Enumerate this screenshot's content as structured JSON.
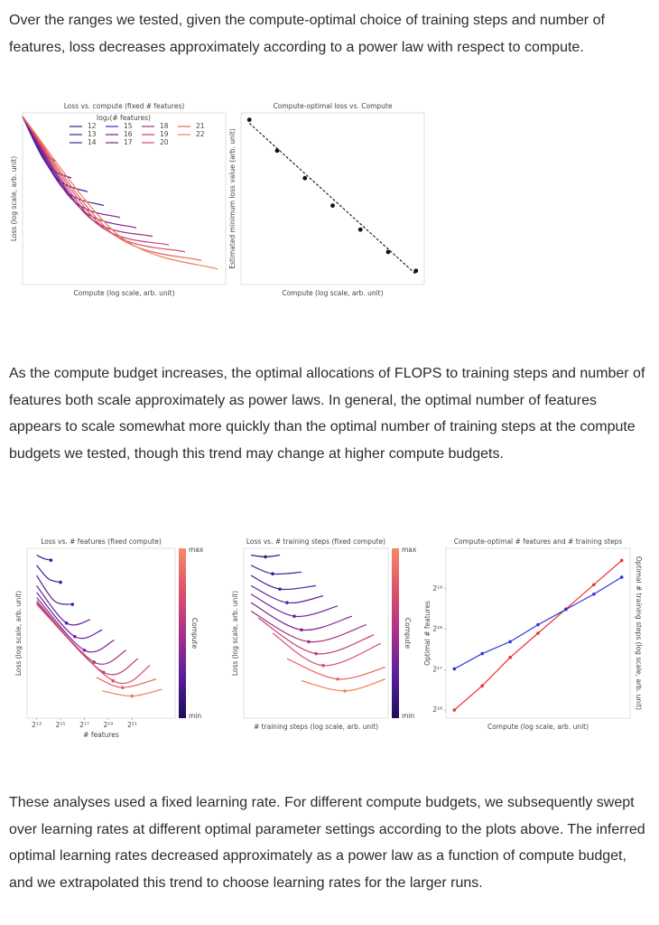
{
  "paragraphs": [
    "Over the ranges we tested, given the compute-optimal choice of training steps and number of features, loss decreases approximately according to a power law with respect to compute.",
    "As the compute budget increases, the optimal allocations of FLOPS to training steps and number of features both scale approximately as power laws. In general, the optimal number of features appears to scale somewhat more quickly than the optimal number of training steps at the compute budgets we tested, though this trend may change at higher compute budgets.",
    "These analyses used a fixed learning rate. For different compute budgets, we subsequently swept over learning rates at different optimal parameter settings according to the plots above. The inferred optimal learning rates decreased approximately as a power law as a function of compute budget, and we extrapolated this trend to choose learning rates for the larger runs."
  ],
  "chart_data": [
    {
      "type": "line",
      "title": "Loss vs. compute (fixed # features)",
      "xlabel": "Compute (log scale, arb. unit)",
      "ylabel": "Loss (log scale, arb. unit)",
      "xlim": [
        0,
        10
      ],
      "ylim": [
        0,
        10
      ],
      "smooth": true,
      "legend": {
        "title": "log₂(# features)",
        "corner": "upper right"
      },
      "series": [
        {
          "name": "12",
          "color": "#2d1e8f",
          "x": [
            0,
            0.8,
            1.6
          ],
          "values": [
            9.8,
            7.9,
            7.2
          ]
        },
        {
          "name": "13",
          "color": "#3b1f9a",
          "x": [
            0,
            1.2,
            2.4
          ],
          "values": [
            9.8,
            7.0,
            6.2
          ]
        },
        {
          "name": "14",
          "color": "#4a1fa0",
          "x": [
            0,
            1.6,
            3.2
          ],
          "values": [
            9.8,
            6.3,
            5.4
          ]
        },
        {
          "name": "15",
          "color": "#5c1f9f",
          "x": [
            0,
            2.0,
            4.0
          ],
          "values": [
            9.8,
            5.6,
            4.6
          ]
        },
        {
          "name": "16",
          "color": "#6e2098",
          "x": [
            0,
            2.4,
            4.8
          ],
          "values": [
            9.8,
            5.0,
            3.9
          ]
        },
        {
          "name": "17",
          "color": "#80218f",
          "x": [
            0,
            2.8,
            5.6
          ],
          "values": [
            9.8,
            4.5,
            3.3
          ]
        },
        {
          "name": "18",
          "color": "#a0307f",
          "x": [
            0,
            3.2,
            6.4
          ],
          "values": [
            9.8,
            4.0,
            2.8
          ]
        },
        {
          "name": "19",
          "color": "#c03e70",
          "x": [
            0,
            3.6,
            7.2
          ],
          "values": [
            9.8,
            3.6,
            2.3
          ]
        },
        {
          "name": "20",
          "color": "#d84f67",
          "x": [
            0,
            4.0,
            8.0
          ],
          "values": [
            9.8,
            3.3,
            1.9
          ]
        },
        {
          "name": "21",
          "color": "#e8655e",
          "x": [
            0,
            4.4,
            8.8
          ],
          "values": [
            9.8,
            3.0,
            1.4
          ]
        },
        {
          "name": "22",
          "color": "#f37e58",
          "x": [
            0,
            4.8,
            9.6
          ],
          "values": [
            9.8,
            2.8,
            0.9
          ]
        }
      ]
    },
    {
      "type": "scatter",
      "title": "Compute-optimal loss vs. Compute",
      "xlabel": "Compute (log scale, arb. unit)",
      "ylabel": "Estimated minimum loss value (arb. unit)",
      "xlim": [
        -0.3,
        6.3
      ],
      "ylim": [
        0,
        10
      ],
      "series": [
        {
          "color": "#111111",
          "x": [
            0,
            1,
            2,
            3,
            4,
            5,
            6
          ],
          "values": [
            9.6,
            7.8,
            6.2,
            4.6,
            3.2,
            1.9,
            0.8
          ]
        }
      ],
      "fit_line": {
        "color": "#111111",
        "x": [
          0,
          6
        ],
        "values": [
          9.4,
          0.6
        ]
      }
    },
    {
      "type": "line",
      "title": "Loss vs. # features (fixed compute)",
      "xlabel": "# features",
      "ylabel": "Loss (log scale, arb. unit)",
      "xlim": [
        12.2,
        24.6
      ],
      "ylim": [
        0,
        10
      ],
      "smooth": true,
      "mark_minimum": true,
      "xticks": [
        {
          "value": 13,
          "label": "2¹³"
        },
        {
          "value": 15,
          "label": "2¹⁵"
        },
        {
          "value": 17,
          "label": "2¹⁷"
        },
        {
          "value": 19,
          "label": "2¹⁹"
        },
        {
          "value": 21,
          "label": "2²¹"
        }
      ],
      "colorbar": {
        "label": "Compute",
        "max_label": "max",
        "min_label": "min",
        "colors": [
          "#1b0c5a",
          "#5a1f9c",
          "#a8308a",
          "#e0506a",
          "#f7896a"
        ]
      },
      "series": [
        {
          "color": "#2d1e8f",
          "x": [
            13,
            13.6,
            14.2
          ],
          "values": [
            9.6,
            9.4,
            9.3
          ]
        },
        {
          "color": "#3b1f9a",
          "x": [
            13,
            14,
            15
          ],
          "values": [
            9.0,
            8.2,
            8.0
          ]
        },
        {
          "color": "#4a1fa0",
          "x": [
            13,
            14.5,
            16
          ],
          "values": [
            8.4,
            6.9,
            6.7
          ]
        },
        {
          "color": "#5c1f9f",
          "x": [
            13,
            15.5,
            17.5
          ],
          "values": [
            7.8,
            5.6,
            5.8
          ]
        },
        {
          "color": "#6e2098",
          "x": [
            13,
            16.2,
            18.5
          ],
          "values": [
            7.4,
            4.8,
            5.2
          ]
        },
        {
          "color": "#80218f",
          "x": [
            13,
            17,
            19.5
          ],
          "values": [
            7.1,
            4.0,
            4.6
          ]
        },
        {
          "color": "#a0307f",
          "x": [
            13,
            17.8,
            20.5
          ],
          "values": [
            6.9,
            3.3,
            4.0
          ]
        },
        {
          "color": "#c03e70",
          "x": [
            13,
            18.6,
            21.5
          ],
          "values": [
            6.8,
            2.7,
            3.5
          ]
        },
        {
          "color": "#d84f67",
          "x": [
            13,
            19.4,
            22.5
          ],
          "values": [
            6.7,
            2.2,
            3.1
          ]
        },
        {
          "color": "#e8655e",
          "x": [
            18,
            20.2,
            23
          ],
          "values": [
            2.4,
            1.8,
            2.3
          ]
        },
        {
          "color": "#f37e58",
          "x": [
            18.5,
            21,
            23.5
          ],
          "values": [
            1.6,
            1.3,
            1.7
          ]
        }
      ]
    },
    {
      "type": "line",
      "title": "Loss vs. # training steps (fixed compute)",
      "xlabel": "# training steps (log scale, arb. unit)",
      "ylabel": "Loss (log scale, arb. unit)",
      "xlim": [
        0,
        10
      ],
      "ylim": [
        0,
        10
      ],
      "smooth": true,
      "mark_minimum": true,
      "colorbar": {
        "label": "Compute",
        "max_label": "max",
        "min_label": "min",
        "colors": [
          "#1b0c5a",
          "#5a1f9c",
          "#a8308a",
          "#e0506a",
          "#f7896a"
        ]
      },
      "series": [
        {
          "color": "#2d1e8f",
          "x": [
            0.5,
            1.5,
            2.5
          ],
          "values": [
            9.6,
            9.5,
            9.6
          ]
        },
        {
          "color": "#3b1f9a",
          "x": [
            0.5,
            2,
            4
          ],
          "values": [
            9.0,
            8.5,
            8.6
          ]
        },
        {
          "color": "#4a1fa0",
          "x": [
            0.5,
            2.5,
            5
          ],
          "values": [
            8.4,
            7.6,
            7.8
          ]
        },
        {
          "color": "#5c1f9f",
          "x": [
            0.5,
            3,
            5.5
          ],
          "values": [
            7.8,
            6.8,
            7.2
          ]
        },
        {
          "color": "#6e2098",
          "x": [
            0.5,
            3.5,
            6.5
          ],
          "values": [
            7.3,
            6.0,
            6.6
          ]
        },
        {
          "color": "#80218f",
          "x": [
            0.5,
            4,
            7.5
          ],
          "values": [
            6.8,
            5.2,
            6.0
          ]
        },
        {
          "color": "#a0307f",
          "x": [
            0.5,
            4.5,
            8.5
          ],
          "values": [
            6.3,
            4.5,
            5.5
          ]
        },
        {
          "color": "#c03e70",
          "x": [
            1,
            5,
            9
          ],
          "values": [
            5.9,
            3.8,
            4.9
          ]
        },
        {
          "color": "#d84f67",
          "x": [
            2,
            5.5,
            9.5
          ],
          "values": [
            5.0,
            3.1,
            4.4
          ]
        },
        {
          "color": "#e8655e",
          "x": [
            3,
            6.5,
            9.8
          ],
          "values": [
            3.5,
            2.3,
            3.0
          ]
        },
        {
          "color": "#f37e58",
          "x": [
            4,
            7,
            9.8
          ],
          "values": [
            2.2,
            1.6,
            2.3
          ]
        }
      ]
    },
    {
      "type": "line",
      "title": "Compute-optimal # features and # training steps",
      "xlabel": "Compute (log scale, arb. unit)",
      "ylabel": "Optimal # features",
      "y2label": "Optimal # training steps (log scale, arb. unit)",
      "xlim": [
        -0.3,
        6.3
      ],
      "ylim": [
        15.8,
        20.0
      ],
      "y2lim": [
        0,
        10
      ],
      "markers": true,
      "yticks": [
        {
          "value": 16,
          "label": "2¹⁶"
        },
        {
          "value": 17,
          "label": "2¹⁷"
        },
        {
          "value": 18,
          "label": "2¹⁸"
        },
        {
          "value": 19,
          "label": "2¹⁹"
        }
      ],
      "x": [
        0,
        1,
        2,
        3,
        4,
        5,
        6
      ],
      "series": [
        {
          "color": "#e8322e",
          "values": [
            16.0,
            16.6,
            17.3,
            17.9,
            18.5,
            19.1,
            19.7
          ]
        },
        {
          "color": "#2f35d8",
          "axis": "y2",
          "values": [
            2.9,
            3.8,
            4.5,
            5.5,
            6.4,
            7.3,
            8.3
          ]
        }
      ]
    }
  ]
}
